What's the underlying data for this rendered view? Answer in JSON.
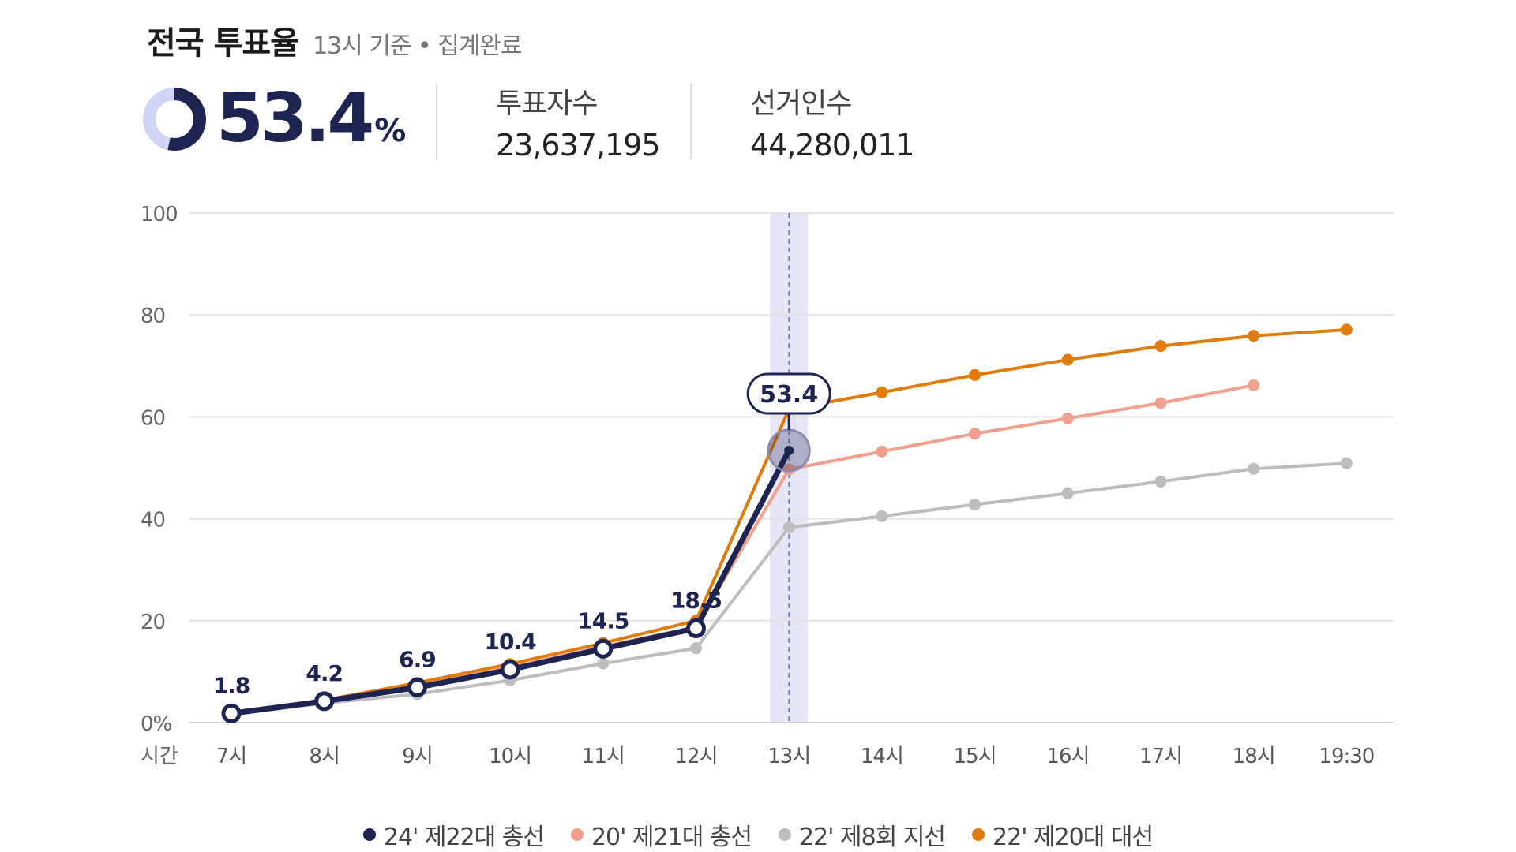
{
  "header": {
    "title": "전국 투표율",
    "subtitle": "13시 기준 • 집계완료"
  },
  "summary": {
    "rate_value": "53.4",
    "rate_unit": "%",
    "rate_fraction": 0.534,
    "voters_label": "투표자수",
    "voters_value": "23,637,195",
    "electorate_label": "선거인수",
    "electorate_value": "44,280,011"
  },
  "colors": {
    "primary": "#1d2452",
    "salmon": "#f0a08c",
    "gray": "#bdbdbd",
    "orange": "#e07b0c",
    "highlight": "#e6e6f6",
    "donut_track": "#d2d4f6"
  },
  "chart_data": {
    "type": "line",
    "categories": [
      "7시",
      "8시",
      "9시",
      "10시",
      "11시",
      "12시",
      "13시",
      "14시",
      "15시",
      "16시",
      "17시",
      "18시",
      "19:30"
    ],
    "x_axis_label": "시간",
    "y_ticks": [
      "0%",
      "20",
      "40",
      "60",
      "80",
      "100"
    ],
    "ylim": [
      0,
      100
    ],
    "grid": true,
    "highlight_category": "13시",
    "current_value_label": "53.4",
    "legend_position": "bottom",
    "series": [
      {
        "name": "24' 제22대 총선",
        "color": "#1d2452",
        "values": [
          1.8,
          4.2,
          6.9,
          10.4,
          14.5,
          18.5,
          53.4,
          null,
          null,
          null,
          null,
          null,
          null
        ],
        "labels": [
          "1.8",
          "4.2",
          "6.9",
          "10.4",
          "14.5",
          "18.5"
        ]
      },
      {
        "name": "20' 제21대 총선",
        "color": "#f0a08c",
        "values": [
          2.0,
          4.4,
          7.3,
          10.8,
          14.9,
          18.8,
          49.7,
          53.2,
          56.7,
          59.7,
          62.7,
          66.2,
          null
        ]
      },
      {
        "name": "22' 제8회 지선",
        "color": "#bdbdbd",
        "values": [
          1.6,
          3.8,
          5.6,
          8.3,
          11.6,
          14.6,
          38.3,
          40.5,
          42.8,
          45.0,
          47.3,
          49.8,
          50.9
        ]
      },
      {
        "name": "22' 제20대 대선",
        "color": "#e07b0c",
        "values": [
          2.0,
          4.4,
          7.8,
          11.5,
          15.6,
          20.0,
          61.5,
          64.8,
          68.2,
          71.2,
          73.9,
          75.9,
          77.1
        ]
      }
    ]
  }
}
